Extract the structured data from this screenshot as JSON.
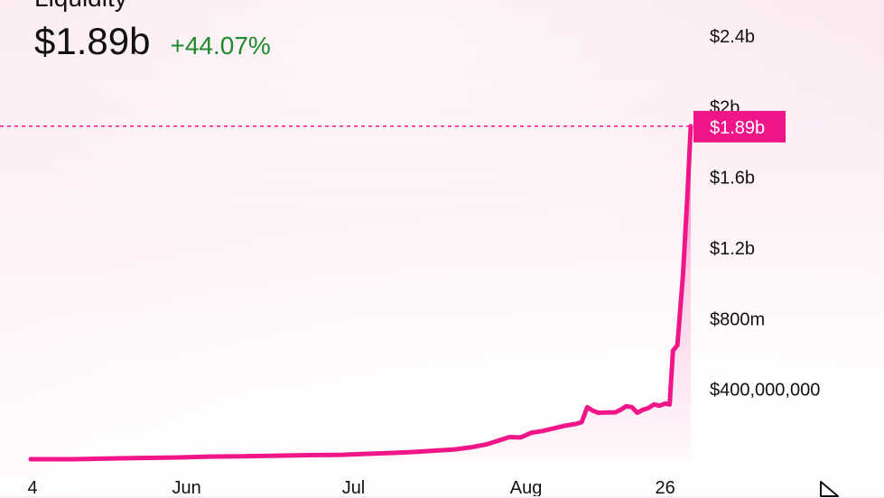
{
  "header": {
    "title": "Liquidity",
    "value": "$1.89b",
    "change": "+44.07%"
  },
  "colors": {
    "accent": "#f0168a",
    "positive": "#1f8a2b",
    "text": "#111111"
  },
  "chart_data": {
    "type": "area",
    "title": "Liquidity",
    "xlabel": "",
    "ylabel": "",
    "x_tick_labels": [
      {
        "label": "4",
        "day": 0
      },
      {
        "label": "Jun",
        "day": 28
      },
      {
        "label": "Jul",
        "day": 58
      },
      {
        "label": "Aug",
        "day": 89
      },
      {
        "label": "26",
        "day": 114
      }
    ],
    "y_tick_labels": [
      {
        "label": "$400,000,000",
        "value": 400000000
      },
      {
        "label": "$800m",
        "value": 800000000
      },
      {
        "label": "$1.2b",
        "value": 1200000000
      },
      {
        "label": "$1.6b",
        "value": 1600000000
      },
      {
        "label": "$2b",
        "value": 2000000000
      },
      {
        "label": "$2.4b",
        "value": 2400000000
      }
    ],
    "xlim": [
      0,
      114
    ],
    "ylim": [
      0,
      2400000000
    ],
    "current_value_label": "$1.89b",
    "current_value": 1890000000,
    "series": [
      {
        "points": [
          [
            0,
            5000000
          ],
          [
            8,
            5000000
          ],
          [
            14,
            9000000
          ],
          [
            20,
            12000000
          ],
          [
            26,
            15000000
          ],
          [
            32,
            20000000
          ],
          [
            38,
            22000000
          ],
          [
            44,
            25000000
          ],
          [
            50,
            28000000
          ],
          [
            56,
            30000000
          ],
          [
            60,
            35000000
          ],
          [
            64,
            40000000
          ],
          [
            68,
            45000000
          ],
          [
            72,
            52000000
          ],
          [
            76,
            60000000
          ],
          [
            79,
            72000000
          ],
          [
            82,
            90000000
          ],
          [
            84,
            110000000
          ],
          [
            86,
            130000000
          ],
          [
            88,
            128000000
          ],
          [
            90,
            155000000
          ],
          [
            92,
            165000000
          ],
          [
            94,
            180000000
          ],
          [
            96,
            195000000
          ],
          [
            98,
            205000000
          ],
          [
            99,
            215000000
          ],
          [
            100,
            300000000
          ],
          [
            101,
            280000000
          ],
          [
            102,
            268000000
          ],
          [
            104,
            270000000
          ],
          [
            105,
            270000000
          ],
          [
            106,
            285000000
          ],
          [
            107,
            305000000
          ],
          [
            108,
            300000000
          ],
          [
            109,
            268000000
          ],
          [
            110,
            285000000
          ],
          [
            111,
            295000000
          ],
          [
            112,
            315000000
          ],
          [
            113,
            308000000
          ],
          [
            114,
            320000000
          ],
          [
            114.8,
            315000000
          ],
          [
            115.4,
            620000000
          ],
          [
            116.2,
            650000000
          ],
          [
            117.2,
            1050000000
          ],
          [
            118,
            1500000000
          ],
          [
            118.6,
            1890000000
          ]
        ]
      }
    ]
  },
  "cursor_icon": "pointer-arrow-icon"
}
